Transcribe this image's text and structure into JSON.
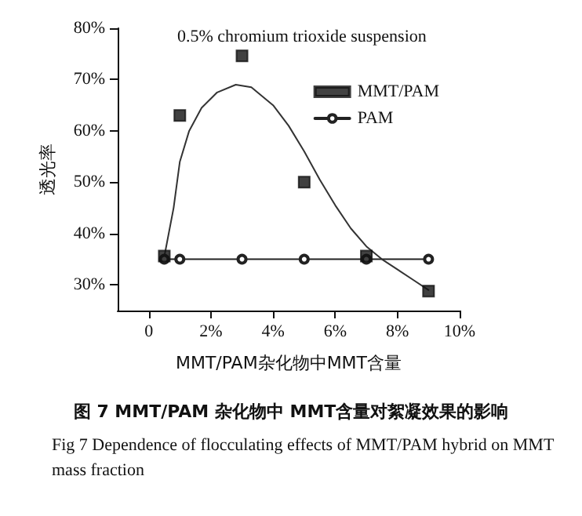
{
  "chart_data": {
    "type": "scatter",
    "title": "图 7 MMT/PAM 杂化物中 MMT含量对絮凝效果的影响",
    "subtitle": "Fig 7 Dependence of flocculating effects of MMT/PAM hybrid on MMT mass fraction",
    "xlabel": "MMT/PAM杂化物中MMT含量",
    "ylabel": "透光率",
    "annotations": [
      "0.5% chromium trioxide suspension"
    ],
    "x": [
      0.5,
      1,
      3,
      5,
      7,
      9
    ],
    "series": [
      {
        "name": "MMT/PAM",
        "color": "#111111",
        "marker": "square",
        "values": [
          35.6,
          63,
          74.6,
          50,
          35.6,
          28.8
        ]
      },
      {
        "name": "PAM",
        "type": "line",
        "color": "#222222",
        "marker": "circle",
        "values": [
          35,
          35,
          35,
          35,
          35,
          35
        ]
      },
      {
        "type": "line",
        "color": "#333333",
        "marker": "none",
        "x": [
          0.5,
          0.8,
          1,
          1.3,
          1.7,
          2.2,
          2.8,
          3.3,
          4,
          4.5,
          5,
          5.5,
          6,
          6.5,
          7,
          7.5,
          8,
          8.5,
          9
        ],
        "values": [
          35.5,
          45,
          54,
          60,
          64.5,
          67.5,
          69,
          68.5,
          65,
          61,
          56,
          50.5,
          45.5,
          41,
          37.5,
          35,
          33,
          31,
          29
        ]
      }
    ],
    "xlim": [
      -1,
      10
    ],
    "xticks": [
      0,
      {
        "value": 2,
        "label": "2%"
      },
      {
        "value": 4,
        "label": "4%"
      },
      {
        "value": 6,
        "label": "6%"
      },
      {
        "value": 8,
        "label": "8%"
      },
      {
        "value": 10,
        "label": "10%"
      }
    ],
    "ylim": [
      25,
      80
    ],
    "yticks": [
      {
        "value": 30,
        "label": "30%"
      },
      {
        "value": 40,
        "label": "40%"
      },
      {
        "value": 50,
        "label": "50%"
      },
      {
        "value": 60,
        "label": "60%"
      },
      {
        "value": 70,
        "label": "70%"
      },
      {
        "value": 80,
        "label": "80%"
      }
    ],
    "grid": false,
    "legend": "top right"
  }
}
